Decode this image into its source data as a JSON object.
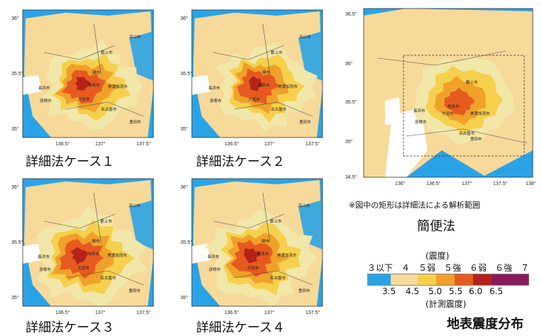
{
  "colors": {
    "sea": "#2aa3e6",
    "c_le3": "#f7d99a",
    "c_4": "#f1e7a8",
    "c_5lower": "#f6d04d",
    "c_5upper": "#f0a12a",
    "c_6lower": "#e65a1f",
    "c_6upper": "#b4231a",
    "c_7": "#8b1a5a",
    "border": "#4a4a4a"
  },
  "maps": [
    {
      "id": "case1",
      "caption": "詳細法ケース１",
      "ylabels": [
        "36°",
        "35.5°",
        "35°"
      ],
      "xlabels": [
        "136.5°",
        "137°",
        "137.5°"
      ],
      "cities": [
        "郡上市",
        "高山市",
        "関市",
        "美濃加茂市",
        "長浜市",
        "彦根市",
        "大垣市",
        "岐阜市",
        "名古屋市",
        "豊田市"
      ]
    },
    {
      "id": "case2",
      "caption": "詳細法ケース２",
      "ylabels": [
        "36°",
        "35.5°",
        "35°"
      ],
      "xlabels": [
        "136.5°",
        "137°",
        "137.5°"
      ],
      "cities": [
        "郡上市",
        "高山市",
        "関市",
        "美濃加茂市",
        "長浜市",
        "彦根市",
        "大垣市",
        "岐阜市",
        "名古屋市",
        "豊田市"
      ]
    },
    {
      "id": "case3",
      "caption": "詳細法ケース３",
      "ylabels": [
        "36°",
        "35.5°",
        "35°"
      ],
      "xlabels": [
        "136.5°",
        "137°",
        "137.5°"
      ],
      "cities": [
        "郡上市",
        "高山市",
        "関市",
        "美濃加茂市",
        "長浜市",
        "彦根市",
        "大垣市",
        "岐阜市",
        "名古屋市",
        "豊田市"
      ]
    },
    {
      "id": "case4",
      "caption": "詳細法ケース４",
      "ylabels": [
        "36°",
        "35.5°",
        "35°"
      ],
      "xlabels": [
        "136.5°",
        "137°",
        "137.5°"
      ],
      "cities": [
        "郡上市",
        "高山市",
        "関市",
        "美濃加茂市",
        "長浜市",
        "彦根市",
        "大垣市",
        "岐阜市",
        "名古屋市",
        "豊田市"
      ]
    }
  ],
  "simple_map": {
    "ylabels": [
      "36.5°",
      "36°",
      "35.5°",
      "35°",
      "34.5°"
    ],
    "xlabels": [
      "136°",
      "136.5°",
      "137°",
      "137.5°",
      "138°"
    ],
    "cities": [
      "郡上市",
      "長浜市",
      "彦根市",
      "大垣市",
      "岐阜市",
      "美濃加茂市",
      "名古屋市",
      "豊田市"
    ],
    "note": "※図中の矩形は詳細法による解析範囲",
    "caption": "簡便法"
  },
  "legend": {
    "heading": "(震度)",
    "classes": "３以下　４　５弱　５強　６弱　６強　７",
    "ticks": [
      "3.5",
      "4.5",
      "5.0",
      "5.5",
      "6.0",
      "6.5"
    ],
    "footer": "(計測震度)"
  },
  "title": "地表震度分布"
}
